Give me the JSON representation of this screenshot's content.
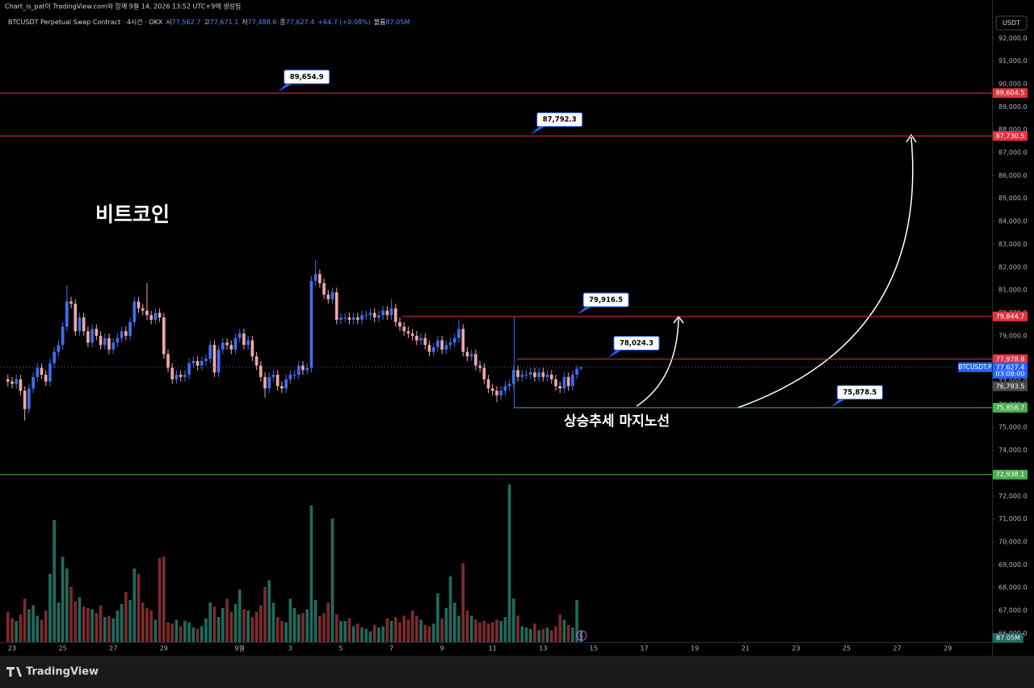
{
  "header": {
    "credit": "Chart_is_pat이 TradingView.com와 함께 9월 14, 2026 13:52 UTC+9에 생성됨",
    "symbol": "BTCUSDT Perpetual Swap Contract · 4시간 · OKX",
    "ohlc": [
      {
        "key": "시",
        "value": "77,562.7"
      },
      {
        "key": "고",
        "value": "77,671.1"
      },
      {
        "key": "저",
        "value": "77,488.6"
      },
      {
        "key": "종",
        "value": "77,627.4"
      }
    ],
    "change": "+64.7 (+0.08%)",
    "volume_key": "볼륨",
    "volume_value": "87.05M",
    "currency": "USDT"
  },
  "footer": {
    "brand": "TradingView"
  },
  "chart_data": {
    "type": "candlestick",
    "title": "비트코인",
    "annotation": "상승추세 마지노선",
    "x": [
      -4,
      0,
      4,
      8,
      12,
      16,
      20,
      24,
      28,
      32,
      36,
      40,
      44,
      48,
      52,
      56,
      60,
      64,
      68,
      72,
      76,
      80,
      84,
      88,
      92,
      96,
      100,
      104,
      108,
      112,
      116,
      120,
      124,
      128,
      132,
      136,
      140,
      144,
      148,
      152,
      156,
      160,
      164,
      168,
      172,
      176,
      180,
      184,
      188,
      192,
      196,
      200,
      204,
      208,
      212,
      216,
      220,
      224,
      228,
      232,
      236,
      240,
      244,
      248,
      252,
      256,
      260,
      264,
      268,
      272,
      276,
      280,
      284,
      288,
      292,
      296,
      300,
      304,
      308,
      312,
      316,
      320,
      324,
      328,
      332,
      336,
      340,
      344,
      348,
      352,
      356,
      360,
      364,
      368,
      372,
      376,
      380,
      384,
      388,
      392,
      396,
      400,
      404,
      408,
      412,
      416,
      420,
      424,
      428,
      432,
      436,
      440,
      444,
      448,
      452,
      456,
      460,
      464,
      468,
      472,
      476,
      480,
      484,
      488,
      492,
      496,
      500,
      504,
      508,
      512,
      516,
      520,
      524,
      528,
      532,
      536,
      540
    ],
    "open": [
      77100,
      77000,
      76900,
      77100,
      76600,
      75800,
      76700,
      77200,
      77600,
      77300,
      77000,
      77800,
      78300,
      78600,
      79400,
      80500,
      80400,
      79200,
      79800,
      79200,
      78700,
      79300,
      79000,
      78600,
      78900,
      78400,
      78700,
      78900,
      79200,
      79000,
      79600,
      80500,
      80200,
      80100,
      79900,
      79700,
      80000,
      79800,
      78200,
      77600,
      77100,
      77300,
      77200,
      77300,
      77800,
      77900,
      77700,
      77900,
      78000,
      78600,
      77400,
      78400,
      78700,
      78600,
      78400,
      78900,
      79100,
      78600,
      78800,
      78100,
      77700,
      77200,
      76700,
      77200,
      77300,
      76800,
      76700,
      77100,
      77300,
      77300,
      77700,
      77500,
      77600,
      81400,
      81700,
      81300,
      80800,
      80600,
      80900,
      79700,
      79800,
      79800,
      79700,
      79800,
      79700,
      79900,
      79900,
      80000,
      79800,
      79900,
      80100,
      79900,
      80200,
      79600,
      79400,
      79200,
      79100,
      79000,
      78800,
      78900,
      78600,
      78300,
      78500,
      78800,
      78400,
      78600,
      78700,
      78900,
      79300,
      78300,
      78100,
      78200,
      77700,
      77600,
      77100,
      76700,
      76600,
      76400,
      76600,
      76800,
      76900,
      77500,
      77200,
      77300,
      77300,
      77400,
      77200,
      77400,
      77200,
      77300,
      77100,
      76800,
      76700,
      77200,
      76800,
      77300,
      77562.7
    ],
    "high": [
      77300,
      77200,
      77300,
      77300,
      76800,
      76900,
      77400,
      77800,
      77800,
      77500,
      78000,
      78500,
      78800,
      79600,
      81200,
      80700,
      80600,
      80000,
      80000,
      79400,
      79500,
      79500,
      79200,
      79100,
      79100,
      78900,
      79100,
      79400,
      79400,
      79800,
      80700,
      80700,
      80400,
      81300,
      80100,
      80200,
      80200,
      80000,
      78400,
      77800,
      77500,
      77500,
      77500,
      78000,
      78100,
      78100,
      78100,
      78200,
      78800,
      78800,
      78600,
      78900,
      78900,
      78800,
      79100,
      79300,
      79300,
      79000,
      79000,
      78300,
      77900,
      77400,
      77400,
      77500,
      77500,
      77000,
      77300,
      77500,
      77500,
      77900,
      77900,
      77800,
      81600,
      82300,
      81900,
      81500,
      81000,
      81100,
      81100,
      80000,
      80000,
      80000,
      80000,
      80000,
      80100,
      80100,
      80200,
      80200,
      80100,
      80300,
      80300,
      80600,
      80400,
      79800,
      79600,
      79400,
      79300,
      79200,
      79100,
      79100,
      78800,
      78700,
      79000,
      79000,
      78800,
      78900,
      79100,
      79700,
      79500,
      78500,
      78400,
      78400,
      77900,
      77800,
      77300,
      76900,
      76800,
      76800,
      77000,
      77100,
      77700,
      77700,
      77500,
      77500,
      77600,
      77600,
      77600,
      77600,
      77500,
      77500,
      77300,
      77000,
      77400,
      77400,
      77500,
      77700,
      77671.1
    ],
    "low": [
      76800,
      76700,
      76700,
      76400,
      75300,
      75600,
      76500,
      77000,
      77100,
      76800,
      76800,
      77600,
      78100,
      78400,
      79200,
      80200,
      79000,
      79000,
      79000,
      78500,
      78500,
      78800,
      78400,
      78400,
      78200,
      78200,
      78500,
      78700,
      78800,
      78800,
      79400,
      80000,
      79900,
      79700,
      79500,
      79500,
      79600,
      78000,
      77400,
      76900,
      76900,
      77000,
      77000,
      77100,
      77600,
      77500,
      77500,
      77700,
      77800,
      77200,
      77200,
      78200,
      78400,
      78200,
      78200,
      78700,
      78400,
      78400,
      77900,
      77500,
      77000,
      76300,
      76500,
      77000,
      76600,
      76500,
      76500,
      76900,
      77100,
      77100,
      77300,
      77300,
      77400,
      81200,
      81100,
      80600,
      80400,
      80400,
      79500,
      79500,
      79600,
      79500,
      79500,
      79500,
      79500,
      79700,
      79700,
      79600,
      79600,
      79700,
      79700,
      79700,
      79400,
      79200,
      79000,
      78900,
      78800,
      78600,
      78600,
      78400,
      78100,
      78100,
      78300,
      78200,
      78200,
      78400,
      78500,
      78700,
      78100,
      77900,
      77900,
      77500,
      77400,
      76900,
      76500,
      76400,
      76100,
      76200,
      76400,
      76600,
      76700,
      77000,
      77000,
      77100,
      77100,
      77000,
      77000,
      77000,
      77000,
      76900,
      76600,
      76500,
      76500,
      76600,
      76600,
      77100,
      77488.6
    ],
    "close": [
      77000,
      76900,
      77100,
      76600,
      75800,
      76700,
      77200,
      77600,
      77300,
      77000,
      77800,
      78300,
      78600,
      79400,
      80500,
      80400,
      79200,
      79800,
      79200,
      78700,
      79300,
      79000,
      78600,
      78900,
      78400,
      78700,
      78900,
      79200,
      79000,
      79600,
      80500,
      80200,
      80100,
      79900,
      79700,
      80000,
      79800,
      78200,
      77600,
      77100,
      77300,
      77200,
      77300,
      77800,
      77900,
      77700,
      77900,
      78000,
      78600,
      77400,
      78400,
      78700,
      78600,
      78400,
      78900,
      79100,
      78600,
      78800,
      78100,
      77700,
      77200,
      76700,
      77200,
      77300,
      76800,
      76700,
      77100,
      77300,
      77300,
      77700,
      77500,
      77600,
      81400,
      81700,
      81300,
      80800,
      80600,
      80900,
      79700,
      79800,
      79800,
      79700,
      79800,
      79700,
      79900,
      79900,
      80000,
      79800,
      79900,
      80100,
      79900,
      80200,
      79600,
      79400,
      79200,
      79100,
      79000,
      78800,
      78900,
      78600,
      78300,
      78500,
      78800,
      78400,
      78600,
      78700,
      78900,
      79300,
      78300,
      78100,
      78200,
      77700,
      77600,
      77100,
      76700,
      76600,
      76400,
      76600,
      76800,
      76900,
      77500,
      77200,
      77300,
      77300,
      77400,
      77200,
      77400,
      77200,
      77300,
      77100,
      76800,
      76700,
      77200,
      76800,
      77300,
      77562.7,
      77627.4
    ],
    "volume": {
      "values": [
        230,
        180,
        160,
        210,
        330,
        250,
        280,
        200,
        170,
        240,
        520,
        930,
        300,
        650,
        560,
        420,
        310,
        340,
        270,
        260,
        250,
        220,
        280,
        190,
        200,
        180,
        240,
        290,
        380,
        320,
        560,
        520,
        300,
        260,
        240,
        170,
        640,
        650,
        150,
        140,
        170,
        120,
        160,
        150,
        110,
        100,
        120,
        180,
        300,
        270,
        190,
        260,
        330,
        230,
        290,
        400,
        250,
        240,
        190,
        230,
        280,
        420,
        470,
        300,
        190,
        160,
        150,
        330,
        260,
        210,
        220,
        250,
        1040,
        320,
        200,
        220,
        300,
        940,
        210,
        160,
        160,
        180,
        120,
        140,
        110,
        100,
        80,
        130,
        110,
        120,
        180,
        160,
        190,
        150,
        200,
        170,
        240,
        200,
        170,
        130,
        120,
        140,
        370,
        180,
        260,
        500,
        300,
        200,
        600,
        240,
        200,
        170,
        150,
        160,
        140,
        150,
        170,
        160,
        190,
        1200,
        330,
        200,
        120,
        110,
        100,
        140,
        90,
        100,
        110,
        90,
        120,
        210,
        170,
        130,
        110,
        320,
        87.05
      ],
      "value_labels": [
        null,
        null,
        null,
        null,
        null,
        null,
        null,
        null,
        null,
        null,
        null,
        null,
        null,
        null,
        null,
        null,
        null,
        null,
        null,
        null,
        null,
        null,
        null,
        null,
        null,
        null,
        null,
        null,
        null,
        null,
        null,
        null,
        null,
        null,
        null,
        null,
        null,
        null,
        null,
        null,
        null,
        null,
        null,
        null,
        null,
        null,
        null,
        null,
        null,
        null,
        null,
        null,
        null,
        null,
        null,
        null,
        null,
        null,
        null,
        null,
        null,
        null,
        null,
        null,
        null,
        null,
        null,
        null,
        null,
        null,
        null,
        null,
        null,
        null,
        null,
        null,
        null,
        null,
        null,
        null,
        null,
        null,
        null,
        null,
        null,
        null,
        null,
        null,
        null,
        null,
        null,
        null,
        null,
        null,
        null,
        null,
        null,
        null,
        null,
        null,
        null,
        null,
        null,
        null,
        null,
        null,
        null,
        null,
        null,
        null,
        null,
        null,
        null,
        null,
        null,
        null,
        null,
        null,
        null,
        null,
        null,
        null,
        null,
        null,
        null,
        null,
        null,
        null,
        null,
        null,
        null,
        null,
        null,
        null,
        null,
        null,
        "87.05M"
      ],
      "ylim": [
        0,
        1200
      ],
      "up_color": "#1f6b5e",
      "down_color": "#7c2b2d"
    },
    "up_color": "#3d6ff0",
    "down_color": "#f3a7a5",
    "xlim": [
      -11.5,
      930
    ],
    "xticks": [
      {
        "value": 0,
        "label": "23"
      },
      {
        "value": 48,
        "label": "25"
      },
      {
        "value": 96,
        "label": "27"
      },
      {
        "value": 144,
        "label": "29"
      },
      {
        "value": 216,
        "label": "9월"
      },
      {
        "value": 264,
        "label": "3"
      },
      {
        "value": 312,
        "label": "5"
      },
      {
        "value": 360,
        "label": "7"
      },
      {
        "value": 408,
        "label": "9"
      },
      {
        "value": 456,
        "label": "11"
      },
      {
        "value": 504,
        "label": "13"
      },
      {
        "value": 552,
        "label": "15"
      },
      {
        "value": 600,
        "label": "17"
      },
      {
        "value": 648,
        "label": "19"
      },
      {
        "value": 696,
        "label": "21"
      },
      {
        "value": 744,
        "label": "23"
      },
      {
        "value": 792,
        "label": "25"
      },
      {
        "value": 840,
        "label": "27"
      },
      {
        "value": 888,
        "label": "29"
      }
    ],
    "ylim": [
      65626,
      92963
    ],
    "yticks": [
      {
        "value": 66000,
        "label": "66,000.0"
      },
      {
        "value": 67000,
        "label": "67,000.0"
      },
      {
        "value": 68000,
        "label": "68,000.0"
      },
      {
        "value": 69000,
        "label": "69,000.0"
      },
      {
        "value": 70000,
        "label": "70,000.0"
      },
      {
        "value": 71000,
        "label": "71,000.0"
      },
      {
        "value": 72000,
        "label": "72,000.0"
      },
      {
        "value": 73000,
        "label": "73,000.0"
      },
      {
        "value": 74000,
        "label": "74,000.0"
      },
      {
        "value": 75000,
        "label": "75,000.0"
      },
      {
        "value": 76000,
        "label": "76,000.0"
      },
      {
        "value": 77000,
        "label": "77,000.0"
      },
      {
        "value": 78000,
        "label": "78,000.0"
      },
      {
        "value": 79000,
        "label": "79,000.0"
      },
      {
        "value": 80000,
        "label": "80,000.0"
      },
      {
        "value": 81000,
        "label": "81,000.0"
      },
      {
        "value": 82000,
        "label": "82,000.0"
      },
      {
        "value": 83000,
        "label": "83,000.0"
      },
      {
        "value": 84000,
        "label": "84,000.0"
      },
      {
        "value": 85000,
        "label": "85,000.0"
      },
      {
        "value": 86000,
        "label": "86,000.0"
      },
      {
        "value": 87000,
        "label": "87,000.0"
      },
      {
        "value": 88000,
        "label": "88,000.0"
      },
      {
        "value": 89000,
        "label": "89,000.0"
      },
      {
        "value": 90000,
        "label": "90,000.0"
      },
      {
        "value": 91000,
        "label": "91,000.0"
      },
      {
        "value": 92000,
        "label": "92,000.0"
      }
    ],
    "levels": [
      {
        "value": 89604.5,
        "label": "89,604.5",
        "color": "#e0333f"
      },
      {
        "value": 87730.5,
        "label": "87,730.5",
        "color": "#e0333f"
      },
      {
        "value": 79844.7,
        "label": "79,844.7",
        "color": "#e0333f",
        "from": 370
      },
      {
        "value": 77978.8,
        "label": "77,978.8",
        "color": "#e0333f",
        "from": 479
      },
      {
        "value": 75858.7,
        "label": "75,858.7",
        "color": "#4caf50",
        "from": 476
      },
      {
        "value": 72938.1,
        "label": "72,938.1",
        "color": "#4caf50"
      }
    ],
    "callouts": [
      {
        "value": 89654.9,
        "label": "89,654.9",
        "x": 252
      },
      {
        "value": 87792.3,
        "label": "87,792.3",
        "x": 492
      },
      {
        "value": 79916.5,
        "label": "79,916.5",
        "x": 536
      },
      {
        "value": 78024.3,
        "label": "78,024.3",
        "x": 565
      },
      {
        "value": 75878.5,
        "label": "75,878.5",
        "x": 777
      }
    ],
    "current": {
      "name": "BTCUSDT.P",
      "label": "77,627.4",
      "countdown": "03:08:00",
      "color": "#2962ff"
    },
    "extra_tags": [
      {
        "value": 76793.5,
        "label": "76,793.5",
        "color": "#4a4a4a"
      }
    ]
  }
}
